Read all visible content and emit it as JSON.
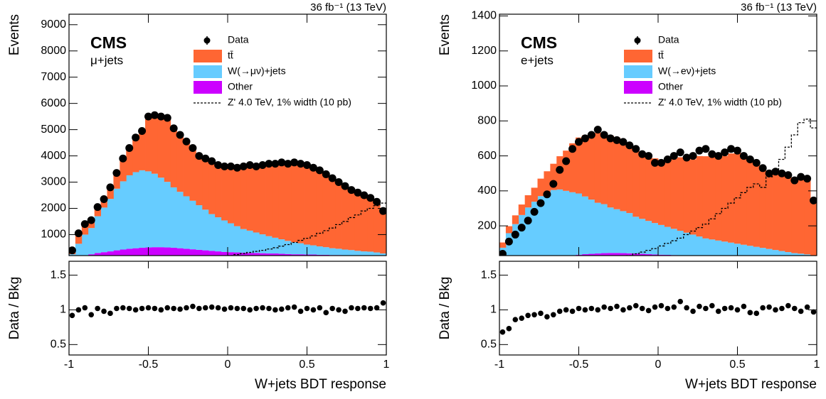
{
  "chart_data": [
    {
      "type": "histogram",
      "lumi": "36 fb⁻¹ (13 TeV)",
      "experiment": "CMS",
      "channel": "μ+jets",
      "xlabel": "W+jets BDT response",
      "ylabel": "Events",
      "ratio_ylabel": "Data / Bkg",
      "bins": [
        -1,
        -0.96,
        -0.92,
        -0.88,
        -0.84,
        -0.8,
        -0.76,
        -0.72,
        -0.68,
        -0.64,
        -0.6,
        -0.56,
        -0.52,
        -0.48,
        -0.44,
        -0.4,
        -0.36,
        -0.32,
        -0.28,
        -0.24,
        -0.2,
        -0.16,
        -0.12,
        -0.08,
        -0.04,
        0,
        0.04,
        0.08,
        0.12,
        0.16,
        0.2,
        0.24,
        0.28,
        0.32,
        0.36,
        0.4,
        0.44,
        0.48,
        0.52,
        0.56,
        0.6,
        0.64,
        0.68,
        0.72,
        0.76,
        0.8,
        0.84,
        0.88,
        0.92,
        0.96,
        1
      ],
      "series": [
        {
          "name": "tt̄",
          "color": "#ff6633",
          "values": [
            150,
            400,
            400,
            300,
            350,
            320,
            440,
            600,
            870,
            1040,
            1320,
            1500,
            2090,
            2230,
            2330,
            2440,
            2250,
            2170,
            2090,
            2010,
            1880,
            1950,
            2020,
            1990,
            2060,
            2170,
            2230,
            2390,
            2500,
            2520,
            2640,
            2760,
            2820,
            2930,
            2940,
            3040,
            3030,
            3030,
            2960,
            2900,
            2780,
            2670,
            2540,
            2420,
            2290,
            2220,
            2140,
            2050,
            1930,
            1620
          ]
        },
        {
          "name": "W(→μν)+jets",
          "color": "#66ccff",
          "values": [
            150,
            500,
            800,
            1000,
            1400,
            1700,
            2000,
            2350,
            2600,
            2800,
            2900,
            2950,
            2900,
            2800,
            2650,
            2500,
            2300,
            2150,
            2000,
            1850,
            1700,
            1550,
            1400,
            1300,
            1200,
            1100,
            1000,
            900,
            850,
            780,
            720,
            660,
            600,
            550,
            500,
            460,
            420,
            380,
            350,
            320,
            290,
            260,
            240,
            220,
            200,
            180,
            160,
            150,
            130,
            110
          ]
        },
        {
          "name": "Other",
          "color": "#cc00ff",
          "values": [
            100,
            150,
            200,
            250,
            300,
            330,
            360,
            400,
            430,
            460,
            480,
            500,
            510,
            520,
            520,
            510,
            500,
            480,
            460,
            440,
            420,
            400,
            380,
            360,
            340,
            330,
            320,
            310,
            300,
            300,
            290,
            280,
            280,
            270,
            260,
            250,
            250,
            240,
            240,
            230,
            230,
            220,
            220,
            210,
            210,
            200,
            200,
            200,
            190,
            170
          ]
        }
      ],
      "data": {
        "name": "Data",
        "color": "#000000",
        "values": [
          400,
          1050,
          1400,
          1550,
          2050,
          2350,
          2800,
          3350,
          3900,
          4300,
          4700,
          4950,
          5500,
          5550,
          5500,
          5450,
          5050,
          4800,
          4550,
          4300,
          4000,
          3900,
          3800,
          3650,
          3600,
          3600,
          3550,
          3600,
          3650,
          3600,
          3650,
          3700,
          3700,
          3750,
          3700,
          3750,
          3700,
          3650,
          3550,
          3450,
          3300,
          3150,
          3000,
          2850,
          2700,
          2600,
          2500,
          2400,
          2250,
          1900
        ]
      },
      "signal": {
        "name": "Z' 4.0 TeV, 1% width (10 pb)",
        "color": "#000000",
        "values": [
          0,
          0,
          0,
          0,
          0,
          0,
          0,
          0,
          0,
          0,
          0,
          0,
          0,
          0,
          10,
          20,
          30,
          40,
          50,
          60,
          80,
          100,
          120,
          140,
          170,
          200,
          240,
          280,
          320,
          360,
          400,
          450,
          500,
          560,
          620,
          700,
          780,
          860,
          950,
          1050,
          1150,
          1250,
          1380,
          1500,
          1650,
          1750,
          1900,
          2000,
          2100,
          2200
        ]
      },
      "ratio": {
        "values": [
          0.92,
          1.0,
          1.03,
          0.93,
          1.02,
          0.98,
          0.95,
          1.02,
          1.03,
          1.02,
          1.0,
          1.02,
          1.03,
          1.02,
          1.0,
          1.03,
          1.02,
          1.01,
          1.03,
          1.05,
          1.02,
          1.03,
          1.04,
          1.03,
          1.01,
          1.03,
          1.02,
          1.02,
          1.0,
          1.02,
          1.03,
          1.02,
          1.0,
          1.01,
          1.03,
          1.04,
          0.98,
          1.02,
          1.0,
          1.03,
          0.96,
          1.02,
          1.0,
          0.98,
          1.03,
          1.02,
          1.03,
          1.02,
          1.03,
          1.1
        ]
      },
      "xlim": [
        -1,
        1
      ],
      "xticks": [
        -1,
        -0.5,
        0,
        0.5,
        1
      ],
      "ylim": [
        200,
        9400
      ],
      "yticks": [
        1000,
        2000,
        3000,
        4000,
        5000,
        6000,
        7000,
        8000,
        9000
      ],
      "ratio_ylim": [
        0.35,
        1.7
      ],
      "ratio_yticks": [
        0.5,
        1,
        1.5
      ]
    },
    {
      "type": "histogram",
      "lumi": "36 fb⁻¹ (13 TeV)",
      "experiment": "CMS",
      "channel": "e+jets",
      "xlabel": "W+jets BDT response",
      "ylabel": "Events",
      "ratio_ylabel": "Data / Bkg",
      "bins": [
        -1,
        -0.96,
        -0.92,
        -0.88,
        -0.84,
        -0.8,
        -0.76,
        -0.72,
        -0.68,
        -0.64,
        -0.6,
        -0.56,
        -0.52,
        -0.48,
        -0.44,
        -0.4,
        -0.36,
        -0.32,
        -0.28,
        -0.24,
        -0.2,
        -0.16,
        -0.12,
        -0.08,
        -0.04,
        0,
        0.04,
        0.08,
        0.12,
        0.16,
        0.2,
        0.24,
        0.28,
        0.32,
        0.36,
        0.4,
        0.44,
        0.48,
        0.52,
        0.56,
        0.6,
        0.64,
        0.68,
        0.72,
        0.76,
        0.8,
        0.84,
        0.88,
        0.92,
        0.96,
        1
      ],
      "series": [
        {
          "name": "tt̄",
          "color": "#ff6633",
          "values": [
            30,
            40,
            50,
            60,
            70,
            80,
            100,
            120,
            150,
            190,
            230,
            280,
            320,
            350,
            380,
            400,
            410,
            410,
            410,
            400,
            390,
            390,
            380,
            380,
            370,
            370,
            380,
            400,
            420,
            420,
            430,
            460,
            470,
            470,
            470,
            490,
            510,
            520,
            510,
            500,
            480,
            460,
            430,
            440,
            440,
            440,
            420,
            440,
            440,
            330
          ]
        },
        {
          "name": "W(→eν)+jets",
          "color": "#66ccff",
          "values": [
            70,
            150,
            200,
            250,
            290,
            320,
            350,
            370,
            380,
            380,
            370,
            360,
            350,
            330,
            310,
            290,
            280,
            260,
            250,
            240,
            230,
            210,
            200,
            190,
            180,
            170,
            160,
            150,
            140,
            130,
            120,
            110,
            100,
            95,
            90,
            85,
            80,
            75,
            70,
            65,
            60,
            55,
            50,
            45,
            40,
            35,
            30,
            28,
            25,
            20
          ]
        },
        {
          "name": "Other",
          "color": "#cc00ff",
          "values": [
            5,
            8,
            10,
            12,
            15,
            18,
            20,
            22,
            25,
            28,
            30,
            32,
            35,
            38,
            40,
            42,
            44,
            45,
            45,
            44,
            43,
            42,
            40,
            38,
            36,
            35,
            34,
            33,
            32,
            31,
            30,
            29,
            28,
            27,
            26,
            25,
            24,
            23,
            22,
            21,
            20,
            19,
            18,
            17,
            16,
            15,
            14,
            13,
            12,
            10
          ]
        }
      ],
      "data": {
        "name": "Data",
        "color": "#000000",
        "values": [
          40,
          110,
          150,
          190,
          230,
          280,
          330,
          380,
          440,
          520,
          570,
          640,
          680,
          700,
          720,
          750,
          720,
          700,
          690,
          680,
          660,
          640,
          610,
          600,
          560,
          560,
          580,
          600,
          620,
          590,
          600,
          630,
          640,
          610,
          600,
          620,
          640,
          630,
          600,
          580,
          560,
          530,
          500,
          510,
          500,
          490,
          460,
          480,
          470,
          345
        ]
      },
      "signal": {
        "name": "Z' 4.0 TeV, 1% width (10 pb)",
        "color": "#000000",
        "values": [
          0,
          0,
          0,
          0,
          0,
          0,
          0,
          0,
          0,
          0,
          0,
          0,
          0,
          0,
          0,
          5,
          10,
          15,
          20,
          25,
          30,
          40,
          50,
          60,
          70,
          85,
          100,
          115,
          130,
          150,
          170,
          190,
          210,
          240,
          270,
          300,
          330,
          360,
          390,
          420,
          440,
          420,
          480,
          520,
          580,
          650,
          720,
          790,
          810,
          760
        ]
      },
      "ratio": {
        "values": [
          0.68,
          0.73,
          0.86,
          0.88,
          0.92,
          0.93,
          0.95,
          0.9,
          0.93,
          0.98,
          1.0,
          0.98,
          1.02,
          1.0,
          1.02,
          1.0,
          1.04,
          1.02,
          1.05,
          1.0,
          1.03,
          1.06,
          1.02,
          0.99,
          1.04,
          1.06,
          1.02,
          1.04,
          1.12,
          1.03,
          0.98,
          1.05,
          1.02,
          1.06,
          0.98,
          1.02,
          1.03,
          1.0,
          1.05,
          0.96,
          0.95,
          1.03,
          1.04,
          1.0,
          1.02,
          1.06,
          1.02,
          0.98,
          1.04,
          0.97
        ]
      },
      "xlim": [
        -1,
        1
      ],
      "xticks": [
        -1,
        -0.5,
        0,
        0.5,
        1
      ],
      "ylim": [
        30,
        1410
      ],
      "yticks": [
        200,
        400,
        600,
        800,
        1000,
        1200,
        1400
      ],
      "ratio_ylim": [
        0.35,
        1.7
      ],
      "ratio_yticks": [
        0.5,
        1,
        1.5
      ]
    }
  ]
}
